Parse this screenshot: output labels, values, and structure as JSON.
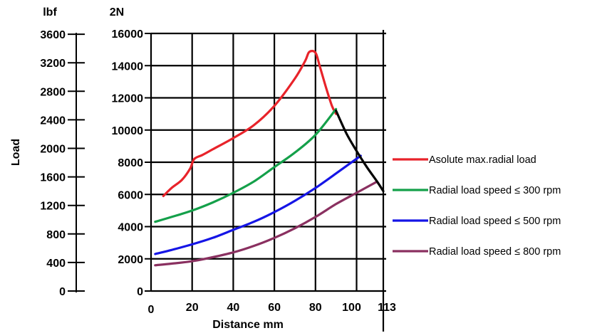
{
  "chart_data": {
    "type": "line",
    "xlabel": "Distance mm",
    "ylabel": "Load",
    "y_unit_left": "lbf",
    "y_unit_right": "2N",
    "xlim": [
      0,
      113
    ],
    "ylim": [
      0,
      16000
    ],
    "x_ticks": [
      "0",
      "20",
      "40",
      "60",
      "80",
      "100",
      "113"
    ],
    "x_tick_values": [
      0,
      20,
      40,
      60,
      80,
      100,
      113
    ],
    "y_ticks_N": [
      "0",
      "2000",
      "4000",
      "6000",
      "8000",
      "10000",
      "12000",
      "14000",
      "16000"
    ],
    "y_tick_values_N": [
      0,
      2000,
      4000,
      6000,
      8000,
      10000,
      12000,
      14000,
      16000
    ],
    "y_ticks_lbf": [
      "0",
      "400",
      "800",
      "1200",
      "1600",
      "2000",
      "2400",
      "2800",
      "3200",
      "3600"
    ],
    "y_tick_values_lbf": [
      0,
      400,
      800,
      1200,
      1600,
      2000,
      2400,
      2800,
      3200,
      3600
    ],
    "grid": true,
    "legend_position": "right",
    "series": [
      {
        "name": "Asolute max.radial load",
        "color": "#e8232a",
        "points": [
          [
            6,
            5900
          ],
          [
            10,
            6400
          ],
          [
            15,
            6900
          ],
          [
            19,
            7600
          ],
          [
            21,
            8200
          ],
          [
            25,
            8450
          ],
          [
            30,
            8800
          ],
          [
            40,
            9500
          ],
          [
            50,
            10300
          ],
          [
            60,
            11500
          ],
          [
            70,
            13200
          ],
          [
            75,
            14300
          ],
          [
            77,
            14850
          ],
          [
            80,
            14800
          ],
          [
            82,
            14000
          ],
          [
            85,
            12700
          ],
          [
            88,
            11500
          ],
          [
            90,
            11000
          ]
        ]
      },
      {
        "name": "Radial load speed ≤ 300 rpm",
        "color": "#14a04a",
        "points": [
          [
            2,
            4300
          ],
          [
            10,
            4600
          ],
          [
            20,
            5000
          ],
          [
            30,
            5500
          ],
          [
            40,
            6100
          ],
          [
            50,
            6800
          ],
          [
            60,
            7700
          ],
          [
            70,
            8600
          ],
          [
            80,
            9700
          ],
          [
            90,
            11300
          ]
        ]
      },
      {
        "name": "Radial load speed ≤ 500 rpm",
        "color": "#1515e6",
        "points": [
          [
            2,
            2300
          ],
          [
            10,
            2550
          ],
          [
            20,
            2900
          ],
          [
            30,
            3300
          ],
          [
            40,
            3800
          ],
          [
            50,
            4300
          ],
          [
            60,
            4900
          ],
          [
            70,
            5600
          ],
          [
            80,
            6400
          ],
          [
            90,
            7300
          ],
          [
            102,
            8400
          ]
        ]
      },
      {
        "name": "Radial load speed ≤ 800 rpm",
        "color": "#8a3060",
        "points": [
          [
            2,
            1600
          ],
          [
            10,
            1700
          ],
          [
            20,
            1850
          ],
          [
            30,
            2100
          ],
          [
            40,
            2400
          ],
          [
            50,
            2800
          ],
          [
            60,
            3300
          ],
          [
            70,
            3900
          ],
          [
            80,
            4600
          ],
          [
            90,
            5400
          ],
          [
            100,
            6100
          ],
          [
            110,
            6800
          ]
        ]
      }
    ],
    "envelope": {
      "color": "#000000",
      "points": [
        [
          90,
          11200
        ],
        [
          95,
          9800
        ],
        [
          100,
          8700
        ],
        [
          105,
          7700
        ],
        [
          110,
          6800
        ],
        [
          113,
          6200
        ]
      ]
    }
  }
}
